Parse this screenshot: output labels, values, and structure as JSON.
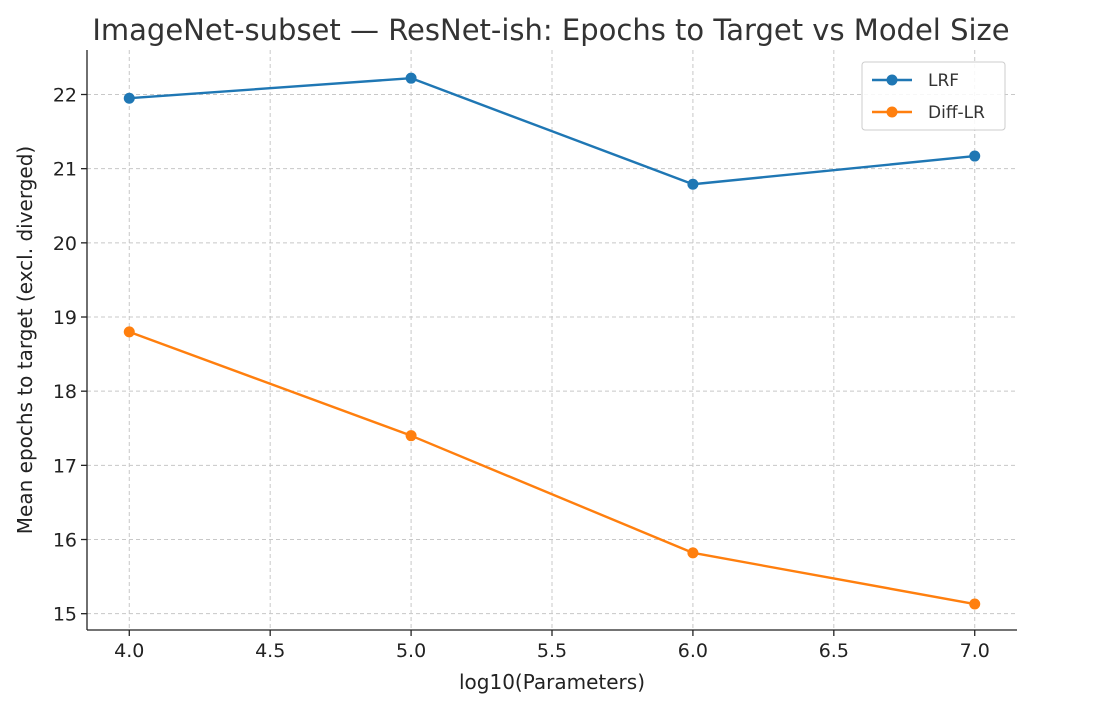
{
  "chart_data": {
    "type": "line",
    "title": "ImageNet-subset — ResNet-ish: Epochs to Target vs Model Size",
    "xlabel": "log10(Parameters)",
    "ylabel": "Mean epochs to target (excl. diverged)",
    "x": [
      4.0,
      5.0,
      6.0,
      7.0
    ],
    "xlim": [
      3.85,
      7.15
    ],
    "ylim": [
      14.78,
      22.6
    ],
    "xticks": [
      4.0,
      4.5,
      5.0,
      5.5,
      6.0,
      6.5,
      7.0
    ],
    "xtick_labels": [
      "4.0",
      "4.5",
      "5.0",
      "5.5",
      "6.0",
      "6.5",
      "7.0"
    ],
    "yticks": [
      15,
      16,
      17,
      18,
      19,
      20,
      21,
      22
    ],
    "ytick_labels": [
      "15",
      "16",
      "17",
      "18",
      "19",
      "20",
      "21",
      "22"
    ],
    "grid": true,
    "legend_position": "top-right",
    "series": [
      {
        "name": "LRF",
        "color": "#1f77b4",
        "marker": "circle",
        "values": [
          21.95,
          22.22,
          20.79,
          21.17
        ]
      },
      {
        "name": "Diff-LR",
        "color": "#ff7f0e",
        "marker": "circle",
        "values": [
          18.8,
          17.4,
          15.82,
          15.13
        ]
      }
    ]
  }
}
